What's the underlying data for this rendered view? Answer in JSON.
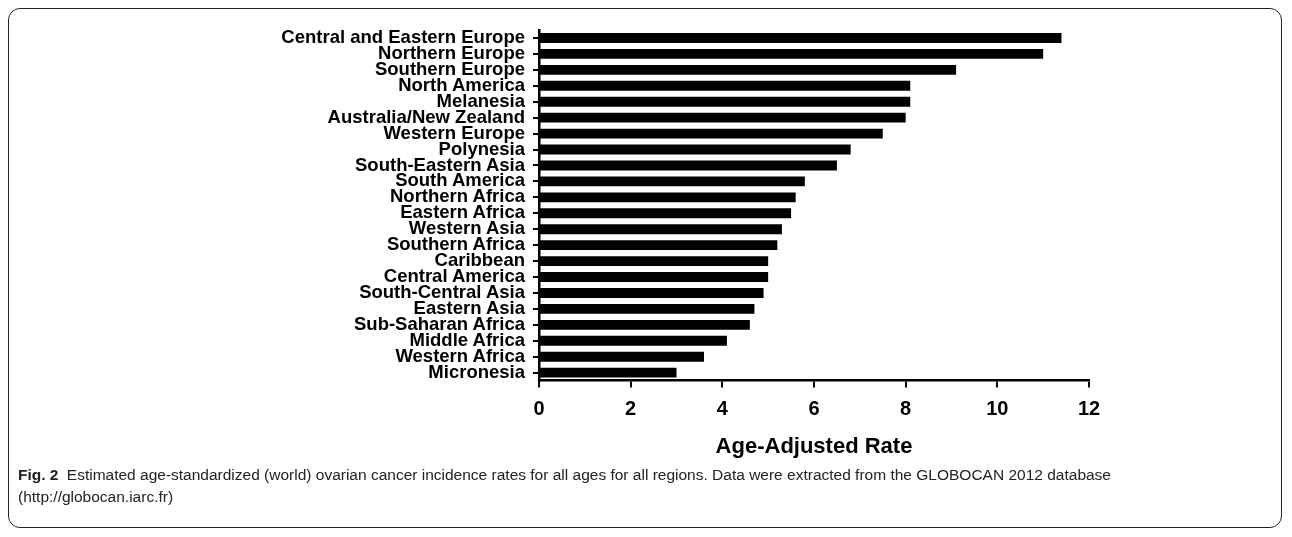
{
  "chart_data": {
    "type": "bar",
    "orientation": "horizontal",
    "xlabel": "Age-Adjusted Rate",
    "categories": [
      "Central and Eastern Europe",
      "Northern Europe",
      "Southern Europe",
      "North America",
      "Melanesia",
      "Australia/New Zealand",
      "Western Europe",
      "Polynesia",
      "South-Eastern Asia",
      "South America",
      "Northern Africa",
      "Eastern Africa",
      "Western Asia",
      "Southern Africa",
      "Caribbean",
      "Central America",
      "South-Central Asia",
      "Eastern Asia",
      "Sub-Saharan Africa",
      "Middle Africa",
      "Western Africa",
      "Micronesia"
    ],
    "values": [
      11.4,
      11.0,
      9.1,
      8.1,
      8.1,
      8.0,
      7.5,
      6.8,
      6.5,
      5.8,
      5.6,
      5.5,
      5.3,
      5.2,
      5.0,
      5.0,
      4.9,
      4.7,
      4.6,
      4.1,
      3.6,
      3.0
    ],
    "color": "#000000",
    "xlim": [
      0,
      12
    ],
    "xticks": [
      0,
      2,
      4,
      6,
      8,
      10,
      12
    ],
    "grid": false,
    "legend": false,
    "annotations": [
      "Fig. 2",
      "Estimated age-standardized (world) ovarian cancer incidence rates for all ages for all regions. Data were extracted from the GLOBOCAN 2012 database (http://globocan.iarc.fr)"
    ]
  }
}
